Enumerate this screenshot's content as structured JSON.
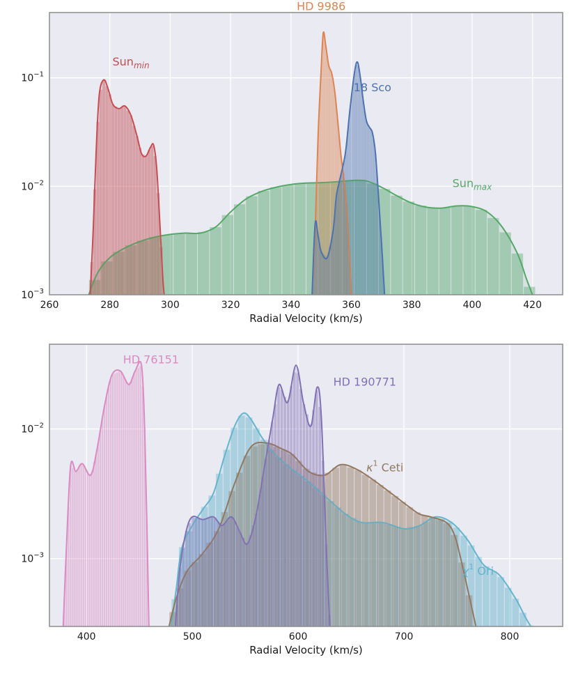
{
  "chart_data": [
    {
      "type": "area",
      "xlabel": "Radial Velocity (km/s)",
      "xlim": [
        260,
        430
      ],
      "ylim": [
        0.001,
        0.4
      ],
      "yscale": "log",
      "x_ticks": [
        260,
        280,
        300,
        320,
        340,
        360,
        380,
        400,
        420
      ],
      "y_ticks": [
        {
          "value": 0.001,
          "base": "10",
          "exp": "−3"
        },
        {
          "value": 0.01,
          "base": "10",
          "exp": "−2"
        },
        {
          "value": 0.1,
          "base": "10",
          "exp": "−1"
        }
      ],
      "grid": true,
      "series": [
        {
          "name": "Sun_max",
          "label": {
            "base": "Sun",
            "sub": "max",
            "at": [
              400,
              0.0098
            ]
          },
          "color": "#55a868",
          "hist_bin_width": 4,
          "points": [
            [
              273,
              0.001
            ],
            [
              276,
              0.0016
            ],
            [
              280,
              0.0022
            ],
            [
              285,
              0.0027
            ],
            [
              290,
              0.0031
            ],
            [
              295,
              0.0034
            ],
            [
              300,
              0.0036
            ],
            [
              305,
              0.0037
            ],
            [
              310,
              0.0037
            ],
            [
              315,
              0.0042
            ],
            [
              320,
              0.0058
            ],
            [
              325,
              0.0076
            ],
            [
              330,
              0.0089
            ],
            [
              335,
              0.0098
            ],
            [
              340,
              0.0104
            ],
            [
              345,
              0.0107
            ],
            [
              350,
              0.0108
            ],
            [
              355,
              0.011
            ],
            [
              360,
              0.0113
            ],
            [
              365,
              0.0112
            ],
            [
              370,
              0.0098
            ],
            [
              375,
              0.0082
            ],
            [
              380,
              0.007
            ],
            [
              385,
              0.0064
            ],
            [
              390,
              0.0063
            ],
            [
              395,
              0.0066
            ],
            [
              400,
              0.0065
            ],
            [
              405,
              0.0058
            ],
            [
              410,
              0.0042
            ],
            [
              415,
              0.0024
            ],
            [
              418,
              0.0014
            ],
            [
              420,
              0.001
            ]
          ]
        },
        {
          "name": "Sun_min",
          "label": {
            "base": "Sun",
            "sub": "min",
            "at": [
              287,
              0.13
            ]
          },
          "color": "#c44e52",
          "hist_bin_width": 1,
          "points": [
            [
              273.5,
              0.001
            ],
            [
              274.5,
              0.004
            ],
            [
              275.5,
              0.022
            ],
            [
              276.5,
              0.07
            ],
            [
              278,
              0.096
            ],
            [
              279.5,
              0.078
            ],
            [
              281,
              0.057
            ],
            [
              283,
              0.052
            ],
            [
              285,
              0.055
            ],
            [
              287,
              0.045
            ],
            [
              289,
              0.029
            ],
            [
              290.5,
              0.02
            ],
            [
              292,
              0.019
            ],
            [
              293.5,
              0.023
            ],
            [
              294.5,
              0.024
            ],
            [
              295.5,
              0.015
            ],
            [
              296.5,
              0.005
            ],
            [
              297.5,
              0.0015
            ],
            [
              298,
              0.001
            ]
          ]
        },
        {
          "name": "HD 9986",
          "label": {
            "base": "HD 9986",
            "sub": "",
            "at": [
              350,
              0.42
            ]
          },
          "color": "#dd8452",
          "hist_bin_width": 0.5,
          "points": [
            [
              347,
              0.001
            ],
            [
              348,
              0.004
            ],
            [
              349,
              0.03
            ],
            [
              350,
              0.12
            ],
            [
              350.7,
              0.26
            ],
            [
              351.5,
              0.2
            ],
            [
              352.5,
              0.13
            ],
            [
              353.5,
              0.11
            ],
            [
              354.5,
              0.075
            ],
            [
              355.5,
              0.04
            ],
            [
              356.5,
              0.02
            ],
            [
              357.5,
              0.012
            ],
            [
              358.5,
              0.006
            ],
            [
              359.5,
              0.002
            ],
            [
              360,
              0.001
            ]
          ]
        },
        {
          "name": "18 Sco",
          "label": {
            "base": "18 Sco",
            "sub": "",
            "at": [
              367,
              0.075
            ]
          },
          "color": "#4c72b0",
          "hist_bin_width": 0.5,
          "points": [
            [
              347,
              0.001
            ],
            [
              348,
              0.0045
            ],
            [
              349,
              0.0035
            ],
            [
              350,
              0.0025
            ],
            [
              352,
              0.0022
            ],
            [
              354,
              0.004
            ],
            [
              355,
              0.008
            ],
            [
              356,
              0.011
            ],
            [
              358,
              0.02
            ],
            [
              359.5,
              0.05
            ],
            [
              361,
              0.11
            ],
            [
              362,
              0.14
            ],
            [
              363,
              0.1
            ],
            [
              364,
              0.06
            ],
            [
              365,
              0.04
            ],
            [
              366,
              0.035
            ],
            [
              367,
              0.031
            ],
            [
              368,
              0.02
            ],
            [
              369,
              0.008
            ],
            [
              370,
              0.003
            ],
            [
              371,
              0.001
            ]
          ]
        }
      ]
    },
    {
      "type": "area",
      "xlabel": "Radial Velocity (km/s)",
      "xlim": [
        365,
        850
      ],
      "ylim": [
        0.0003,
        0.045
      ],
      "yscale": "log",
      "x_ticks": [
        400,
        500,
        600,
        700,
        800
      ],
      "y_ticks": [
        {
          "value": 0.001,
          "base": "10",
          "exp": "−3"
        },
        {
          "value": 0.01,
          "base": "10",
          "exp": "−2"
        }
      ],
      "grid": true,
      "series": [
        {
          "name": "χ1 Ori",
          "label": {
            "base": "χ",
            "sup": "1",
            "suffix": " Ori",
            "at": [
              770,
              0.00075
            ]
          },
          "color": "#64b5cd",
          "hist_bin_width": 7,
          "points": [
            [
              480,
              0.0003
            ],
            [
              485,
              0.0006
            ],
            [
              490,
              0.0012
            ],
            [
              500,
              0.0018
            ],
            [
              510,
              0.0024
            ],
            [
              520,
              0.0032
            ],
            [
              530,
              0.006
            ],
            [
              540,
              0.0105
            ],
            [
              548,
              0.0132
            ],
            [
              555,
              0.012
            ],
            [
              565,
              0.0088
            ],
            [
              575,
              0.0068
            ],
            [
              590,
              0.0052
            ],
            [
              610,
              0.0039
            ],
            [
              630,
              0.0028
            ],
            [
              645,
              0.0022
            ],
            [
              660,
              0.0019
            ],
            [
              680,
              0.0019
            ],
            [
              700,
              0.0017
            ],
            [
              715,
              0.0018
            ],
            [
              730,
              0.0021
            ],
            [
              745,
              0.0019
            ],
            [
              760,
              0.0014
            ],
            [
              775,
              0.0009
            ],
            [
              790,
              0.00075
            ],
            [
              805,
              0.0005
            ],
            [
              815,
              0.00035
            ],
            [
              820,
              0.0003
            ]
          ]
        },
        {
          "name": "κ1 Ceti",
          "label": {
            "base": "κ",
            "sup": "1",
            "suffix": " Ceti",
            "at": [
              682,
              0.0047
            ]
          },
          "color": "#937860",
          "hist_bin_width": 7,
          "points": [
            [
              478,
              0.0003
            ],
            [
              485,
              0.0005
            ],
            [
              495,
              0.0008
            ],
            [
              510,
              0.0011
            ],
            [
              525,
              0.0017
            ],
            [
              540,
              0.0038
            ],
            [
              555,
              0.0072
            ],
            [
              570,
              0.0078
            ],
            [
              585,
              0.007
            ],
            [
              595,
              0.0063
            ],
            [
              610,
              0.0047
            ],
            [
              625,
              0.0044
            ],
            [
              640,
              0.0053
            ],
            [
              655,
              0.0049
            ],
            [
              670,
              0.0041
            ],
            [
              690,
              0.0031
            ],
            [
              705,
              0.0025
            ],
            [
              715,
              0.0022
            ],
            [
              725,
              0.0021
            ],
            [
              740,
              0.0019
            ],
            [
              748,
              0.0015
            ],
            [
              755,
              0.0009
            ],
            [
              762,
              0.0005
            ],
            [
              768,
              0.0003
            ]
          ]
        },
        {
          "name": "HD 76151",
          "label": {
            "base": "HD 76151",
            "sub": "",
            "at": [
              461,
              0.032
            ]
          },
          "color": "#da8bc3",
          "hist_bin_width": 2,
          "points": [
            [
              378,
              0.0003
            ],
            [
              381,
              0.0012
            ],
            [
              385,
              0.0052
            ],
            [
              390,
              0.0047
            ],
            [
              396,
              0.0054
            ],
            [
              404,
              0.0044
            ],
            [
              410,
              0.007
            ],
            [
              417,
              0.015
            ],
            [
              424,
              0.026
            ],
            [
              432,
              0.028
            ],
            [
              440,
              0.022
            ],
            [
              446,
              0.028
            ],
            [
              452,
              0.031
            ],
            [
              455,
              0.01
            ],
            [
              457,
              0.002
            ],
            [
              459,
              0.0003
            ]
          ]
        },
        {
          "name": "HD 190771",
          "label": {
            "base": "HD 190771",
            "sub": "",
            "at": [
              663,
              0.0215
            ]
          },
          "color": "#8172b3",
          "hist_bin_width": 3,
          "points": [
            [
              484,
              0.0003
            ],
            [
              488,
              0.0008
            ],
            [
              494,
              0.0016
            ],
            [
              500,
              0.0021
            ],
            [
              510,
              0.002
            ],
            [
              520,
              0.0021
            ],
            [
              528,
              0.0018
            ],
            [
              537,
              0.0021
            ],
            [
              545,
              0.0016
            ],
            [
              552,
              0.0013
            ],
            [
              560,
              0.0021
            ],
            [
              568,
              0.005
            ],
            [
              576,
              0.012
            ],
            [
              582,
              0.022
            ],
            [
              590,
              0.016
            ],
            [
              598,
              0.031
            ],
            [
              605,
              0.016
            ],
            [
              612,
              0.0105
            ],
            [
              618,
              0.021
            ],
            [
              622,
              0.012
            ],
            [
              627,
              0.001
            ],
            [
              630,
              0.0003
            ]
          ]
        }
      ]
    }
  ]
}
